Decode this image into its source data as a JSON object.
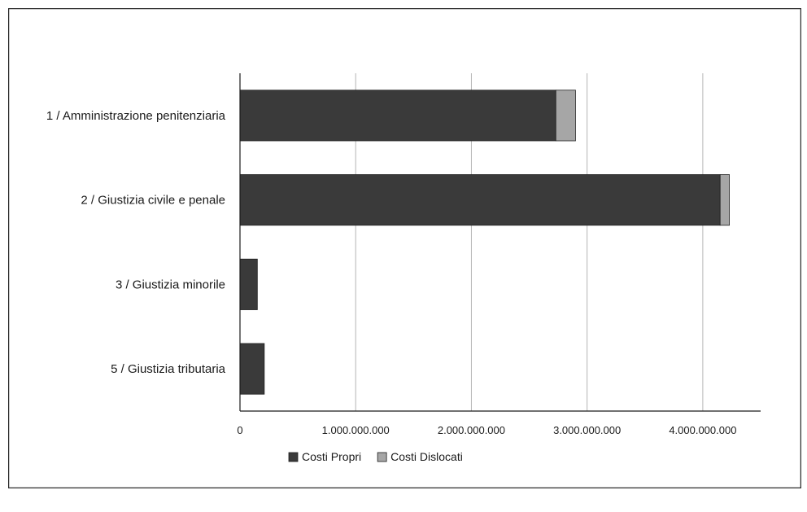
{
  "chart_data": {
    "type": "bar",
    "orientation": "horizontal",
    "stacked": true,
    "categories": [
      "1 / Amministrazione penitenziaria",
      "2 / Giustizia civile e penale",
      "3 / Giustizia minorile",
      "5 / Giustizia tributaria"
    ],
    "series": [
      {
        "name": "Costi Propri",
        "values": [
          2730000000,
          4150000000,
          150000000,
          210000000
        ],
        "color": "#3a3a3a"
      },
      {
        "name": "Costi Dislocati",
        "values": [
          170000000,
          80000000,
          0,
          0
        ],
        "color": "#a6a6a6"
      }
    ],
    "x_ticks": [
      "0",
      "1.000.000.000",
      "2.000.000.000",
      "3.000.000.000",
      "4.000.000.000"
    ],
    "xlim": [
      0,
      4500000000
    ],
    "grid": "vertical",
    "legend_position": "bottom"
  }
}
